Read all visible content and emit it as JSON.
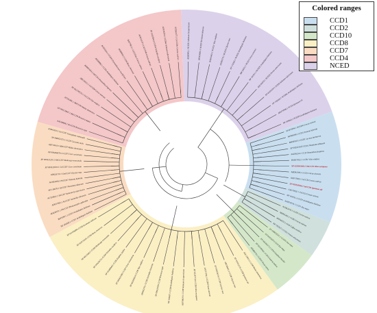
{
  "legend": {
    "title": "Colored ranges",
    "items": [
      {
        "label": "CCD1",
        "color": "#c9dff0"
      },
      {
        "label": "CCD2",
        "color": "#cfe0dd"
      },
      {
        "label": "CCD10",
        "color": "#d4e8c9"
      },
      {
        "label": "CCD8",
        "color": "#fbefc4"
      },
      {
        "label": "CCD7",
        "color": "#fadcc2"
      },
      {
        "label": "CCD4",
        "color": "#f4c7c9"
      },
      {
        "label": "NCED",
        "color": "#dcd1ea"
      }
    ]
  },
  "tree": {
    "clades": [
      {
        "name": "NCED",
        "color": "#dcd1ea",
        "leaves": [
          "AEI69892.1 NCED1 Solanum lycopersicum",
          "AEW24882.1 NCED Nicotiana tabacum",
          "BAE45462.1 NCED1 Vitis vinifera",
          "AEI56574.1 NCED3 Glycine max",
          "NP 174302.1 NCED2 Arabidopsis thaliana",
          "ABC26011.1 NCED Citrus sinensis",
          "NP 191911.1 NCED5 Arabidopsis thaliana",
          "AAC49070.1 NCED3 Persea americana",
          "XP 010315971 NCED Solanum tuberosum",
          "NP 193569.1 NCED6 Arabidopsis thaliana",
          "ABO70998.1 NCED Ipomoea nil",
          "NP 189064.1 NCED9 Arabidopsis thaliana"
        ]
      },
      {
        "name": "CCD1",
        "color": "#c9dff0",
        "leaves": [
          "AFD72894.1 NCED4 Crocus sativus",
          "AAT68189.1 CCD1 Petunia hybrida",
          "BAH09113.1 CCD1 Lycium barbarum",
          "XP 003533015 CCD1 Nicotiana tabacum",
          "AAZ36254.1 CCD Osmanthus fragrans",
          "BAH57812.1 CCD1 Vitis vinifera",
          "XP 022891849.1 OeCCD1 Olea europaea",
          "ABD91193.1 CCD1 Citrus sinensis",
          "AAN17829.1 CsCCD Crocus sativus",
          "XP 019150034.1 InCCD1 Ipomoea nil",
          "CAC79592.1 CsCCD Crocus sativus",
          "NP 191911.1 CCD1 Arabidopsis thaliana",
          "AAM19274.1 CCD1 Zea mays"
        ]
      },
      {
        "name": "CCD2",
        "color": "#cfe0dd",
        "leaves": [
          "ACD62476.1 CCD2 Crocus sativus",
          "AEH95493.1 CCD2 Crocus sativus",
          "AAY46557.1 CCD Coffea arabica",
          "NP 192327.1 CCD2 Crocus ancyrensis"
        ]
      },
      {
        "name": "CCD10",
        "color": "#d4e8c9",
        "leaves": [
          "XP 008655521.1 CCD10 Zea mays",
          "NP 001150276 CCD Zea mays",
          "XP 002465373 CCD10 Sorghum bicolor",
          "XP 025795041 CCD10 Setaria italica",
          "AFE88279.1 CCD10 Oryza sativa"
        ]
      },
      {
        "name": "CCD8",
        "color": "#fbefc4",
        "leaves": [
          "ADC33813.1 CCD8 Malus domestica",
          "XP 019152175 CCD8 Ipomoea nil",
          "ABC68416.1 CCD8 Glycine max",
          "XP 003536716 CCD8 Glycine max",
          "AAT71794.1 CCD8 Pisum sativum",
          "XP 022877134 CCD8 Olea europaea",
          "AEF38019.1 CCD8 Solanum lycopersicum",
          "NP 195007.1 CCD8 Arabidopsis thaliana",
          "XP 009110593 CCD8 Brassica rapa",
          "ABV65279.1 CCD8 Actinidia chinensis",
          "XP 002282614 CCD8 Vitis vinifera",
          "XP 006421380 CCD8 Citrus clementina",
          "XP 015880461 CCD8 Ziziphus jujuba",
          "XP 010256712 CCD8 Nelumbo nucifera",
          "NP 001236617 CCD8 Medicago truncatula",
          "XP 024172201 CCD8 Rosa chinensis",
          "XP 011076890 CCD8 Sesamum indicum"
        ]
      },
      {
        "name": "CCD7",
        "color": "#fadcc2",
        "leaves": [
          "NP 182026.1 CCD7 Arabidopsis thaliana",
          "BAF69911.1 CCD7 Arabidopsis thaliana",
          "AEQ39971.1 PhCCD7 Phalaenopsis aphrodite",
          "ADP37983.1 AcCCD7 Actinidia chinensis",
          "ACT59851.1 SlCCD7 Solanum lycopersicum",
          "AFU18678.1 NtCCD7 Nicotiana tabacum",
          "ACH35488.1 PhCCD7 Petunia hybrida",
          "ADK26710.1 GmCCD7 Glycine max",
          "XP 004513033.1 CaCCD7 Cicer arietinum",
          "XP 003621255.1 MtCCD7 Medicago truncatula",
          "XP 004496979.1 CCD7 Cicer arietinum",
          "AEF13618.1 MdCCD7 Malus domestica",
          "XP 008452372.1 CCD7 Cucumis melo",
          "KJB44910.1 GrCCD7 Gossypium raimondii"
        ]
      },
      {
        "name": "CCD4",
        "color": "#f4c7c9",
        "leaves": [
          "AAU06696.1 BrCCD4 Brassica rapa",
          "XP 009129947.1 BnCCD4 Brassica napus",
          "AFV61881.1 MdCCD4 Malus domestica",
          "XP 002278223.1 VvCCD4 Vitis vinifera",
          "ABC26012.1 CsCCD4 Citrus sinensis",
          "ADM67654.1 OfCCD4 Osmanthus fragrans",
          "AEE80062.1 CCD4 Arabidopsis thaliana",
          "ACO53101.1 CCD4 Chrysanthemum morifolium",
          "AEI80004.1 CCD4 Rosa chinensis",
          "BAF79913.1 CsCCD4a Crocus sativus",
          "AEW31577.1 CsCCD4b Crocus sativus",
          "XP 010258413 CCD4 Nelumbo nucifera",
          "AFR78374.1 CCD4a Solanum tuberosum",
          "ACD62477.1 CsCCD4c Crocus sativus"
        ]
      }
    ],
    "highlighted": [
      "XP 022891849.1 OeCCD1 Olea europaea",
      "XP 019150034.1 InCCD1 Ipomoea nil"
    ],
    "highlight_color": "#c4161c"
  }
}
